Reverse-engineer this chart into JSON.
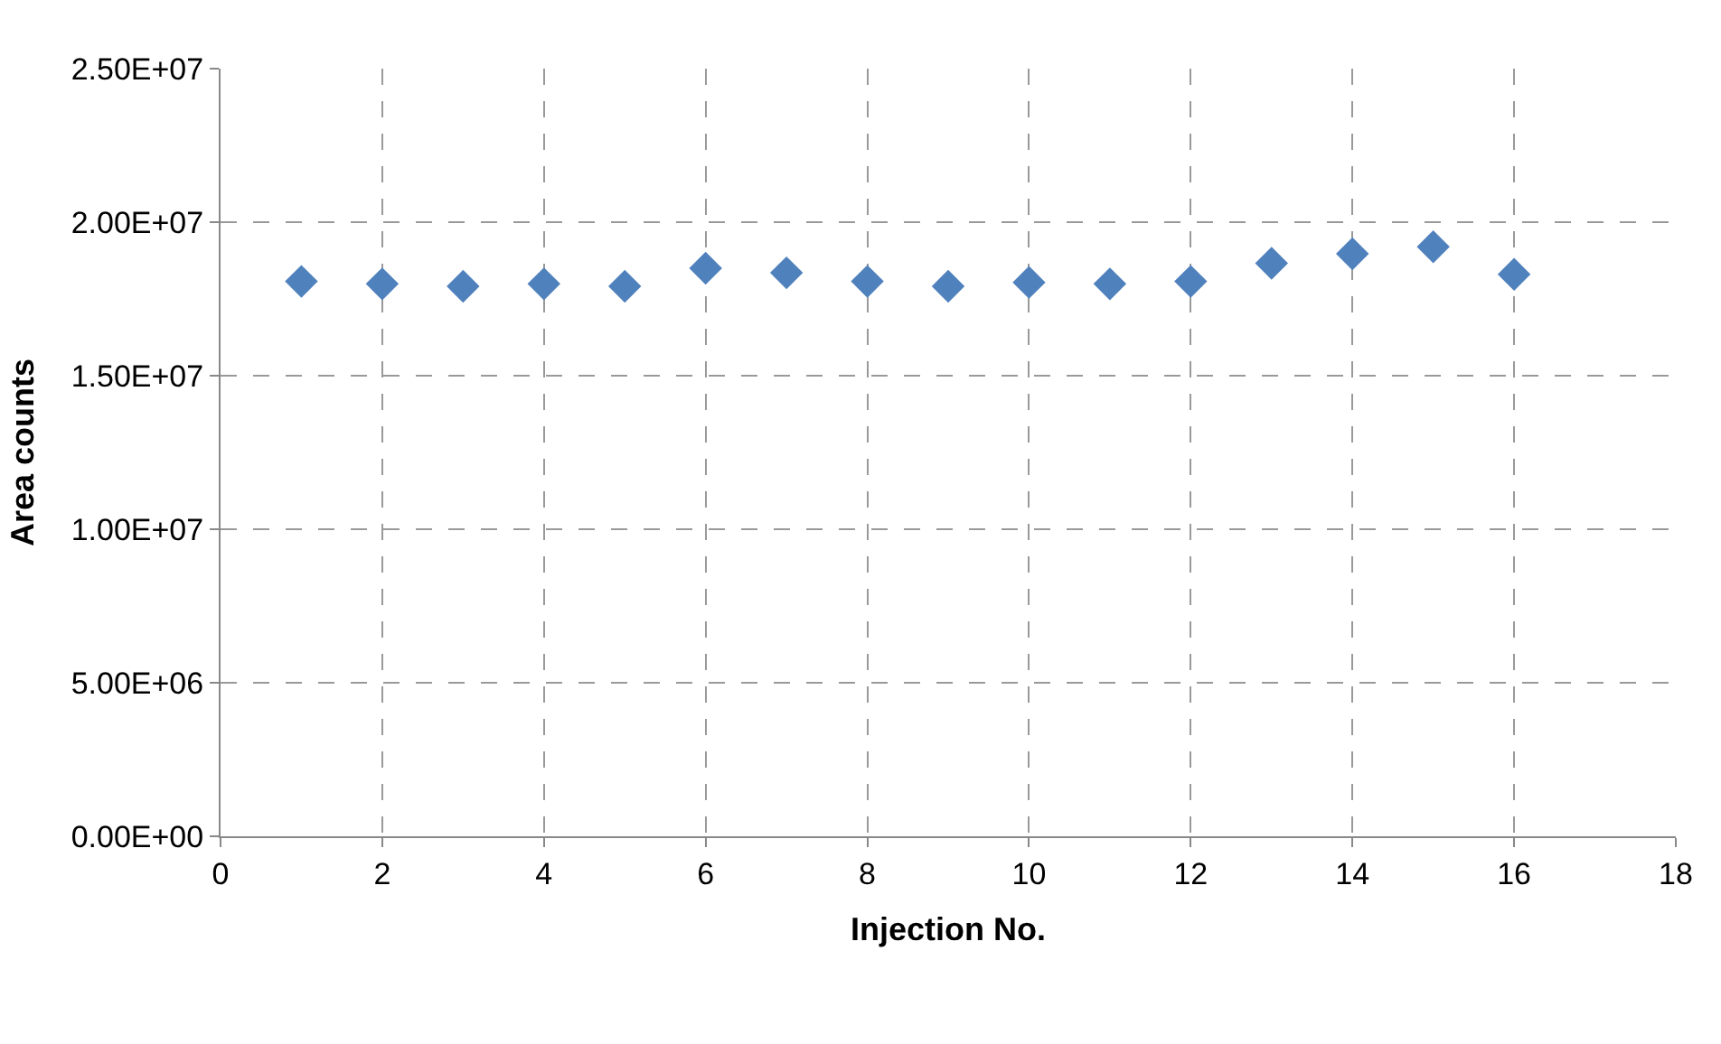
{
  "chart_data": {
    "type": "scatter",
    "xlabel": "Injection No.",
    "ylabel": "Area counts",
    "x": [
      1,
      2,
      3,
      4,
      5,
      6,
      7,
      8,
      9,
      10,
      11,
      12,
      13,
      14,
      15,
      16
    ],
    "series": [
      {
        "color": "#4f81bd",
        "values": [
          18070000,
          17990000,
          17910000,
          17990000,
          17910000,
          18500000,
          18350000,
          18070000,
          17910000,
          18040000,
          17990000,
          18070000,
          18660000,
          18970000,
          19200000,
          18300000
        ]
      }
    ],
    "marker": "diamond",
    "xlim": [
      0,
      18
    ],
    "xticks": [
      0,
      2,
      4,
      6,
      8,
      10,
      12,
      14,
      16,
      18
    ],
    "ylim": [
      0,
      25000000
    ],
    "yticks": [
      {
        "value": 0,
        "label": "0.00E+00"
      },
      {
        "value": 5000000,
        "label": "5.00E+06"
      },
      {
        "value": 10000000,
        "label": "1.00E+07"
      },
      {
        "value": 15000000,
        "label": "1.50E+07"
      },
      {
        "value": 20000000,
        "label": "2.00E+07"
      },
      {
        "value": 25000000,
        "label": "2.50E+07"
      }
    ],
    "grid": true
  }
}
